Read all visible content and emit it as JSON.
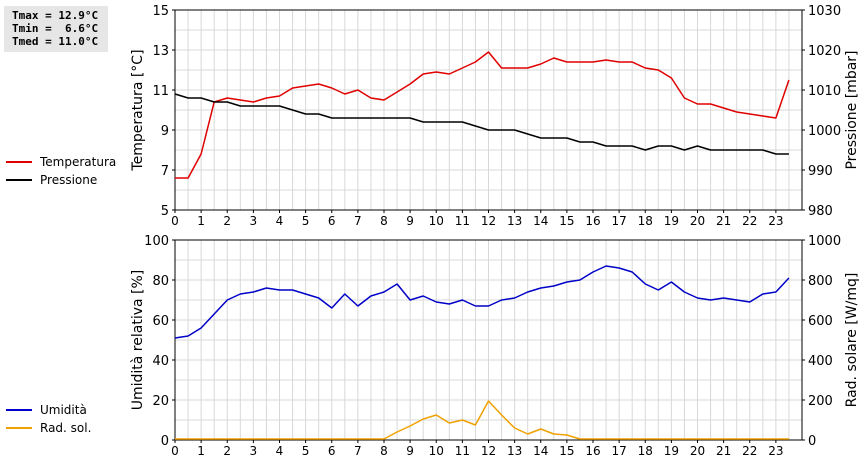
{
  "stats": {
    "tmax": "Tmax = 12.9°C",
    "tmin": "Tmin =  6.6°C",
    "tmed": "Tmed = 11.0°C"
  },
  "chart_data": [
    {
      "type": "line",
      "x_ticks": [
        0,
        1,
        2,
        3,
        4,
        5,
        6,
        7,
        8,
        9,
        10,
        11,
        12,
        13,
        14,
        15,
        16,
        17,
        18,
        19,
        20,
        21,
        22,
        23
      ],
      "xlim": [
        0,
        24
      ],
      "ylabel_left": "Temperatura [°C]",
      "ylim_left": [
        5,
        15
      ],
      "yticks_left": [
        5,
        7,
        9,
        11,
        13,
        15
      ],
      "ylabel_right": "Pressione [mbar]",
      "ylim_right": [
        980,
        1030
      ],
      "yticks_right": [
        980,
        990,
        1000,
        1010,
        1020,
        1030
      ],
      "grid": true,
      "series": [
        {
          "name": "Temperatura",
          "color": "#e00000",
          "axis": "left",
          "x": [
            0,
            0.5,
            1,
            1.5,
            2,
            2.5,
            3,
            3.5,
            4,
            4.5,
            5,
            5.5,
            6,
            6.5,
            7,
            7.5,
            8,
            8.5,
            9,
            9.5,
            10,
            10.5,
            11,
            11.5,
            12,
            12.5,
            13,
            13.5,
            14,
            14.5,
            15,
            15.5,
            16,
            16.5,
            17,
            17.5,
            18,
            18.5,
            19,
            19.5,
            20,
            20.5,
            21,
            21.5,
            22,
            22.5,
            23,
            23.5
          ],
          "y": [
            6.6,
            6.6,
            7.8,
            10.4,
            10.6,
            10.5,
            10.4,
            10.6,
            10.7,
            11.1,
            11.2,
            11.3,
            11.1,
            10.8,
            11.0,
            10.6,
            10.5,
            10.9,
            11.3,
            11.8,
            11.9,
            11.8,
            12.1,
            12.4,
            12.9,
            12.1,
            12.1,
            12.1,
            12.3,
            12.6,
            12.4,
            12.4,
            12.4,
            12.5,
            12.4,
            12.4,
            12.1,
            12.0,
            11.6,
            10.6,
            10.3,
            10.3,
            10.1,
            9.9,
            9.8,
            9.7,
            9.6,
            11.5
          ]
        },
        {
          "name": "Pressione",
          "color": "#000000",
          "axis": "right",
          "x": [
            0,
            0.5,
            1,
            1.5,
            2,
            2.5,
            3,
            3.5,
            4,
            4.5,
            5,
            5.5,
            6,
            6.5,
            7,
            7.5,
            8,
            8.5,
            9,
            9.5,
            10,
            10.5,
            11,
            11.5,
            12,
            12.5,
            13,
            13.5,
            14,
            14.5,
            15,
            15.5,
            16,
            16.5,
            17,
            17.5,
            18,
            18.5,
            19,
            19.5,
            20,
            20.5,
            21,
            21.5,
            22,
            22.5,
            23,
            23.5
          ],
          "y": [
            1009,
            1008,
            1008,
            1007,
            1007,
            1006,
            1006,
            1006,
            1006,
            1005,
            1004,
            1004,
            1003,
            1003,
            1003,
            1003,
            1003,
            1003,
            1003,
            1002,
            1002,
            1002,
            1002,
            1001,
            1000,
            1000,
            1000,
            999,
            998,
            998,
            998,
            997,
            997,
            996,
            996,
            996,
            995,
            996,
            996,
            995,
            996,
            995,
            995,
            995,
            995,
            995,
            994,
            994
          ]
        }
      ]
    },
    {
      "type": "line",
      "x_ticks": [
        0,
        1,
        2,
        3,
        4,
        5,
        6,
        7,
        8,
        9,
        10,
        11,
        12,
        13,
        14,
        15,
        16,
        17,
        18,
        19,
        20,
        21,
        22,
        23
      ],
      "xlim": [
        0,
        24
      ],
      "ylabel_left": "Umidità relativa [%]",
      "ylim_left": [
        0,
        100
      ],
      "yticks_left": [
        0,
        20,
        40,
        60,
        80,
        100
      ],
      "ylabel_right": "Rad. solare [W/mq]",
      "ylim_right": [
        0,
        1000
      ],
      "yticks_right": [
        0,
        200,
        400,
        600,
        800,
        1000
      ],
      "grid": true,
      "series": [
        {
          "name": "Umidità",
          "color": "#0000c8",
          "axis": "left",
          "x": [
            0,
            0.5,
            1,
            1.5,
            2,
            2.5,
            3,
            3.5,
            4,
            4.5,
            5,
            5.5,
            6,
            6.5,
            7,
            7.5,
            8,
            8.5,
            9,
            9.5,
            10,
            10.5,
            11,
            11.5,
            12,
            12.5,
            13,
            13.5,
            14,
            14.5,
            15,
            15.5,
            16,
            16.5,
            17,
            17.5,
            18,
            18.5,
            19,
            19.5,
            20,
            20.5,
            21,
            21.5,
            22,
            22.5,
            23,
            23.5
          ],
          "y": [
            51,
            52,
            56,
            63,
            70,
            73,
            74,
            76,
            75,
            75,
            73,
            71,
            66,
            73,
            67,
            72,
            74,
            78,
            70,
            72,
            69,
            68,
            70,
            67,
            67,
            70,
            71,
            74,
            76,
            77,
            79,
            80,
            84,
            87,
            86,
            84,
            78,
            75,
            79,
            74,
            71,
            70,
            71,
            70,
            69,
            73,
            74,
            81
          ]
        },
        {
          "name": "Rad. sol.",
          "color": "#f0a000",
          "axis": "right",
          "x": [
            0,
            1,
            2,
            3,
            4,
            5,
            6,
            7,
            8,
            8.5,
            9,
            9.5,
            10,
            10.5,
            11,
            11.5,
            12,
            12.5,
            13,
            13.5,
            14,
            14.5,
            15,
            15.5,
            16,
            17,
            18,
            19,
            20,
            21,
            22,
            23,
            23.5
          ],
          "y": [
            5,
            5,
            5,
            5,
            5,
            5,
            5,
            5,
            5,
            40,
            70,
            105,
            125,
            85,
            100,
            75,
            195,
            125,
            60,
            30,
            55,
            30,
            25,
            5,
            5,
            5,
            5,
            5,
            5,
            5,
            5,
            5,
            5
          ]
        }
      ]
    }
  ]
}
